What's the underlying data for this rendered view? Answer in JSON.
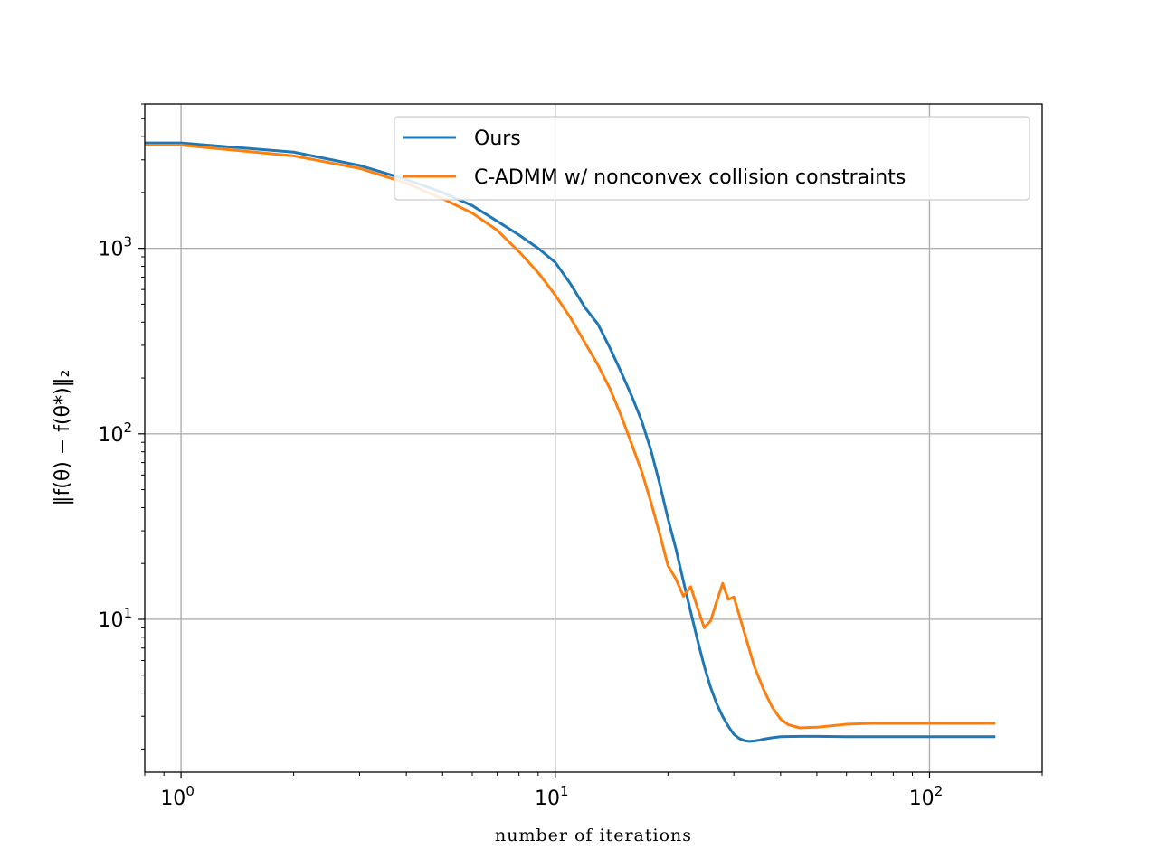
{
  "chart_data": {
    "type": "line",
    "xscale": "log",
    "yscale": "log",
    "xlim": [
      0.8,
      200
    ],
    "ylim": [
      1.5,
      6000
    ],
    "grid": true,
    "legend_position": "top-right",
    "xlabel": "number  of  iterations",
    "ylabel": "‖f(θ) − f(θ*)‖₂",
    "x_ticks": [
      {
        "value": 1,
        "base": "10",
        "exp": "0"
      },
      {
        "value": 10,
        "base": "10",
        "exp": "1"
      },
      {
        "value": 100,
        "base": "10",
        "exp": "2"
      }
    ],
    "y_ticks": [
      {
        "value": 10,
        "base": "10",
        "exp": "1"
      },
      {
        "value": 100,
        "base": "10",
        "exp": "2"
      },
      {
        "value": 1000,
        "base": "10",
        "exp": "3"
      }
    ],
    "series": [
      {
        "name": "Ours",
        "color": "#1f77b4",
        "x": [
          0.8,
          1,
          2,
          3,
          4,
          5,
          6,
          7,
          8,
          9,
          10,
          11,
          12,
          13,
          14,
          15,
          16,
          17,
          18,
          19,
          20,
          21,
          22,
          23,
          24,
          25,
          26,
          27,
          28,
          29,
          30,
          31,
          32,
          33,
          34,
          35,
          36,
          38,
          40,
          45,
          50,
          60,
          70,
          80,
          100,
          120,
          150
        ],
        "y": [
          3700,
          3700,
          3300,
          2800,
          2350,
          2000,
          1700,
          1400,
          1180,
          1000,
          840,
          640,
          480,
          390,
          290,
          215,
          160,
          118,
          82,
          54,
          35,
          24,
          16,
          11,
          7.7,
          5.6,
          4.3,
          3.5,
          3.0,
          2.65,
          2.4,
          2.28,
          2.22,
          2.2,
          2.21,
          2.23,
          2.26,
          2.3,
          2.33,
          2.34,
          2.34,
          2.33,
          2.33,
          2.33,
          2.33,
          2.33,
          2.33
        ]
      },
      {
        "name": "C-ADMM w/ nonconvex collision constraints",
        "color": "#ff7f0e",
        "x": [
          0.8,
          1,
          2,
          3,
          4,
          5,
          6,
          7,
          8,
          9,
          10,
          11,
          12,
          13,
          14,
          15,
          16,
          17,
          18,
          19,
          20,
          21,
          22,
          23,
          24,
          25,
          26,
          27,
          28,
          29,
          30,
          32,
          34,
          36,
          38,
          40,
          42,
          45,
          50,
          60,
          70,
          80,
          100,
          120,
          150
        ],
        "y": [
          3600,
          3600,
          3150,
          2700,
          2250,
          1850,
          1550,
          1250,
          960,
          740,
          560,
          420,
          310,
          235,
          175,
          125,
          88,
          63,
          43,
          29,
          19.5,
          16.5,
          13.3,
          15,
          11.5,
          9.0,
          9.8,
          12.5,
          15.6,
          12.8,
          13.2,
          8.5,
          5.6,
          4.2,
          3.35,
          2.9,
          2.7,
          2.6,
          2.62,
          2.72,
          2.75,
          2.75,
          2.75,
          2.75,
          2.75
        ]
      }
    ]
  }
}
